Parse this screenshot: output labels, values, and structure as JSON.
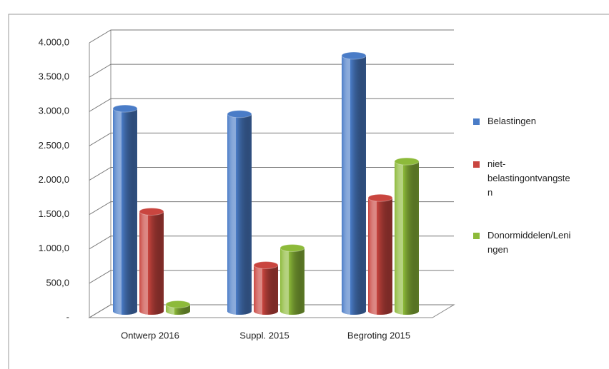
{
  "chart_data": {
    "type": "bar",
    "categories": [
      "Ontwerp 2016",
      "Suppl. 2015",
      "Begroting 2015"
    ],
    "series": [
      {
        "name": "Belastingen",
        "color": "#4a7cc7",
        "values": [
          2950,
          2870,
          3720
        ]
      },
      {
        "name": "niet-belastingontvangsten",
        "color": "#c9453f",
        "values": [
          1450,
          670,
          1650
        ]
      },
      {
        "name": "Donormiddelen/Leningen",
        "color": "#8dba3a",
        "values": [
          100,
          920,
          2180
        ]
      }
    ],
    "ylim": [
      0,
      4000
    ],
    "yticks": [
      {
        "value": 0,
        "label": "-"
      },
      {
        "value": 500,
        "label": "500,0"
      },
      {
        "value": 1000,
        "label": "1.000,0"
      },
      {
        "value": 1500,
        "label": "1.500,0"
      },
      {
        "value": 2000,
        "label": "2.000,0"
      },
      {
        "value": 2500,
        "label": "2.500,0"
      },
      {
        "value": 3000,
        "label": "3.000,0"
      },
      {
        "value": 3500,
        "label": "3.500,0"
      },
      {
        "value": 4000,
        "label": "4.000,0"
      }
    ],
    "grid": true,
    "legend": "right"
  }
}
